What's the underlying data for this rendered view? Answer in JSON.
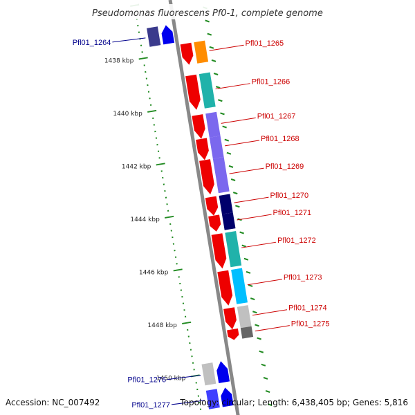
{
  "title": "Pseudomonas fluorescens Pf0-1, complete genome",
  "footer": {
    "accession": "Accession: NC_007492",
    "summary": "Topology: circular; Length: 6,438,405 bp; Genes: 5,816"
  },
  "colors": {
    "backbone": "#888888",
    "forward_gene": "#ee0000",
    "reverse_gene": "#0000ee",
    "forward_label": "#cc0000",
    "reverse_label": "#00008b",
    "tick": "#228b22",
    "leader": "#cc0000"
  },
  "scale": {
    "ticks": [
      {
        "kbp": 1438,
        "label": "1438 kbp"
      },
      {
        "kbp": 1440,
        "label": "1440 kbp"
      },
      {
        "kbp": 1442,
        "label": "1442 kbp"
      },
      {
        "kbp": 1444,
        "label": "1444 kbp"
      },
      {
        "kbp": 1446,
        "label": "1446 kbp"
      },
      {
        "kbp": 1448,
        "label": "1448 kbp"
      },
      {
        "kbp": 1450,
        "label": "1450 kbp"
      }
    ]
  },
  "genes": [
    {
      "label": "Pfl01_1264",
      "strand": "reverse",
      "start_kbp": 1436.9,
      "end_kbp": 1437.6,
      "cog": "#3a3a8c"
    },
    {
      "label": "Pfl01_1265",
      "strand": "forward",
      "start_kbp": 1437.7,
      "end_kbp": 1438.5,
      "cog": "#ff8c00"
    },
    {
      "label": "Pfl01_1266",
      "strand": "forward",
      "start_kbp": 1438.9,
      "end_kbp": 1440.2,
      "cog": "#20b2aa"
    },
    {
      "label": "Pfl01_1267",
      "strand": "forward",
      "start_kbp": 1440.4,
      "end_kbp": 1441.3,
      "cog": "#7b68ee"
    },
    {
      "label": "Pfl01_1268",
      "strand": "forward",
      "start_kbp": 1441.3,
      "end_kbp": 1442.1,
      "cog": "#7b68ee"
    },
    {
      "label": "Pfl01_1269",
      "strand": "forward",
      "start_kbp": 1442.1,
      "end_kbp": 1443.4,
      "cog": "#7b68ee"
    },
    {
      "label": "Pfl01_1270",
      "strand": "forward",
      "start_kbp": 1443.5,
      "end_kbp": 1444.2,
      "cog": "#00006b"
    },
    {
      "label": "Pfl01_1271",
      "strand": "forward",
      "start_kbp": 1444.2,
      "end_kbp": 1444.8,
      "cog": "#00006b"
    },
    {
      "label": "Pfl01_1272",
      "strand": "forward",
      "start_kbp": 1444.9,
      "end_kbp": 1446.2,
      "cog": "#20b2aa"
    },
    {
      "label": "Pfl01_1273",
      "strand": "forward",
      "start_kbp": 1446.3,
      "end_kbp": 1447.6,
      "cog": "#00bfff"
    },
    {
      "label": "Pfl01_1274",
      "strand": "forward",
      "start_kbp": 1447.7,
      "end_kbp": 1448.5,
      "cog": "#c0c0c0"
    },
    {
      "label": "Pfl01_1275",
      "strand": "forward",
      "start_kbp": 1448.5,
      "end_kbp": 1448.9,
      "cog": "#666666"
    },
    {
      "label": "Pfl01_1276",
      "strand": "reverse",
      "start_kbp": 1449.6,
      "end_kbp": 1450.4,
      "cog": "#c0c0c0"
    },
    {
      "label": "Pfl01_1277",
      "strand": "reverse",
      "start_kbp": 1450.6,
      "end_kbp": 1451.3,
      "cog": "#4040ff"
    }
  ]
}
